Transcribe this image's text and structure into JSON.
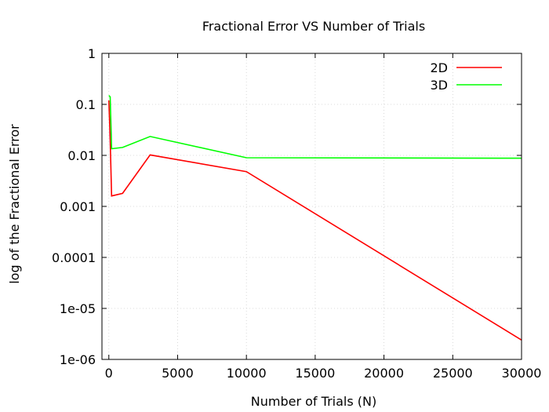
{
  "chart_data": {
    "type": "line",
    "title": "Fractional Error VS Number of Trials",
    "xlabel": "Number of Trials (N)",
    "ylabel": "log of the Fractional Error",
    "xlim": [
      -500,
      30000
    ],
    "ylim": [
      1e-06,
      1
    ],
    "yscale": "log",
    "grid": true,
    "legend_position": "top-right",
    "x_ticks": [
      0,
      5000,
      10000,
      15000,
      20000,
      25000,
      30000
    ],
    "x_tick_labels": [
      "0",
      "5000",
      "10000",
      "15000",
      "20000",
      "25000",
      "30000"
    ],
    "y_ticks": [
      1,
      0.1,
      0.01,
      0.001,
      0.0001,
      1e-05,
      1e-06
    ],
    "y_tick_labels": [
      "1",
      "0.1",
      "0.01",
      "0.001",
      "0.0001",
      "1e-05",
      "1e-06"
    ],
    "series": [
      {
        "name": "2D",
        "color": "#ff0000",
        "x": [
          0,
          100,
          200,
          1000,
          3000,
          10000,
          30000
        ],
        "y": [
          0.12,
          0.02,
          0.0016,
          0.0018,
          0.0102,
          0.0048,
          2.4e-06
        ]
      },
      {
        "name": "3D",
        "color": "#00ff00",
        "x": [
          0,
          100,
          200,
          1000,
          3000,
          10000,
          30000
        ],
        "y": [
          0.15,
          0.14,
          0.0135,
          0.0143,
          0.0235,
          0.009,
          0.0088
        ]
      }
    ]
  }
}
